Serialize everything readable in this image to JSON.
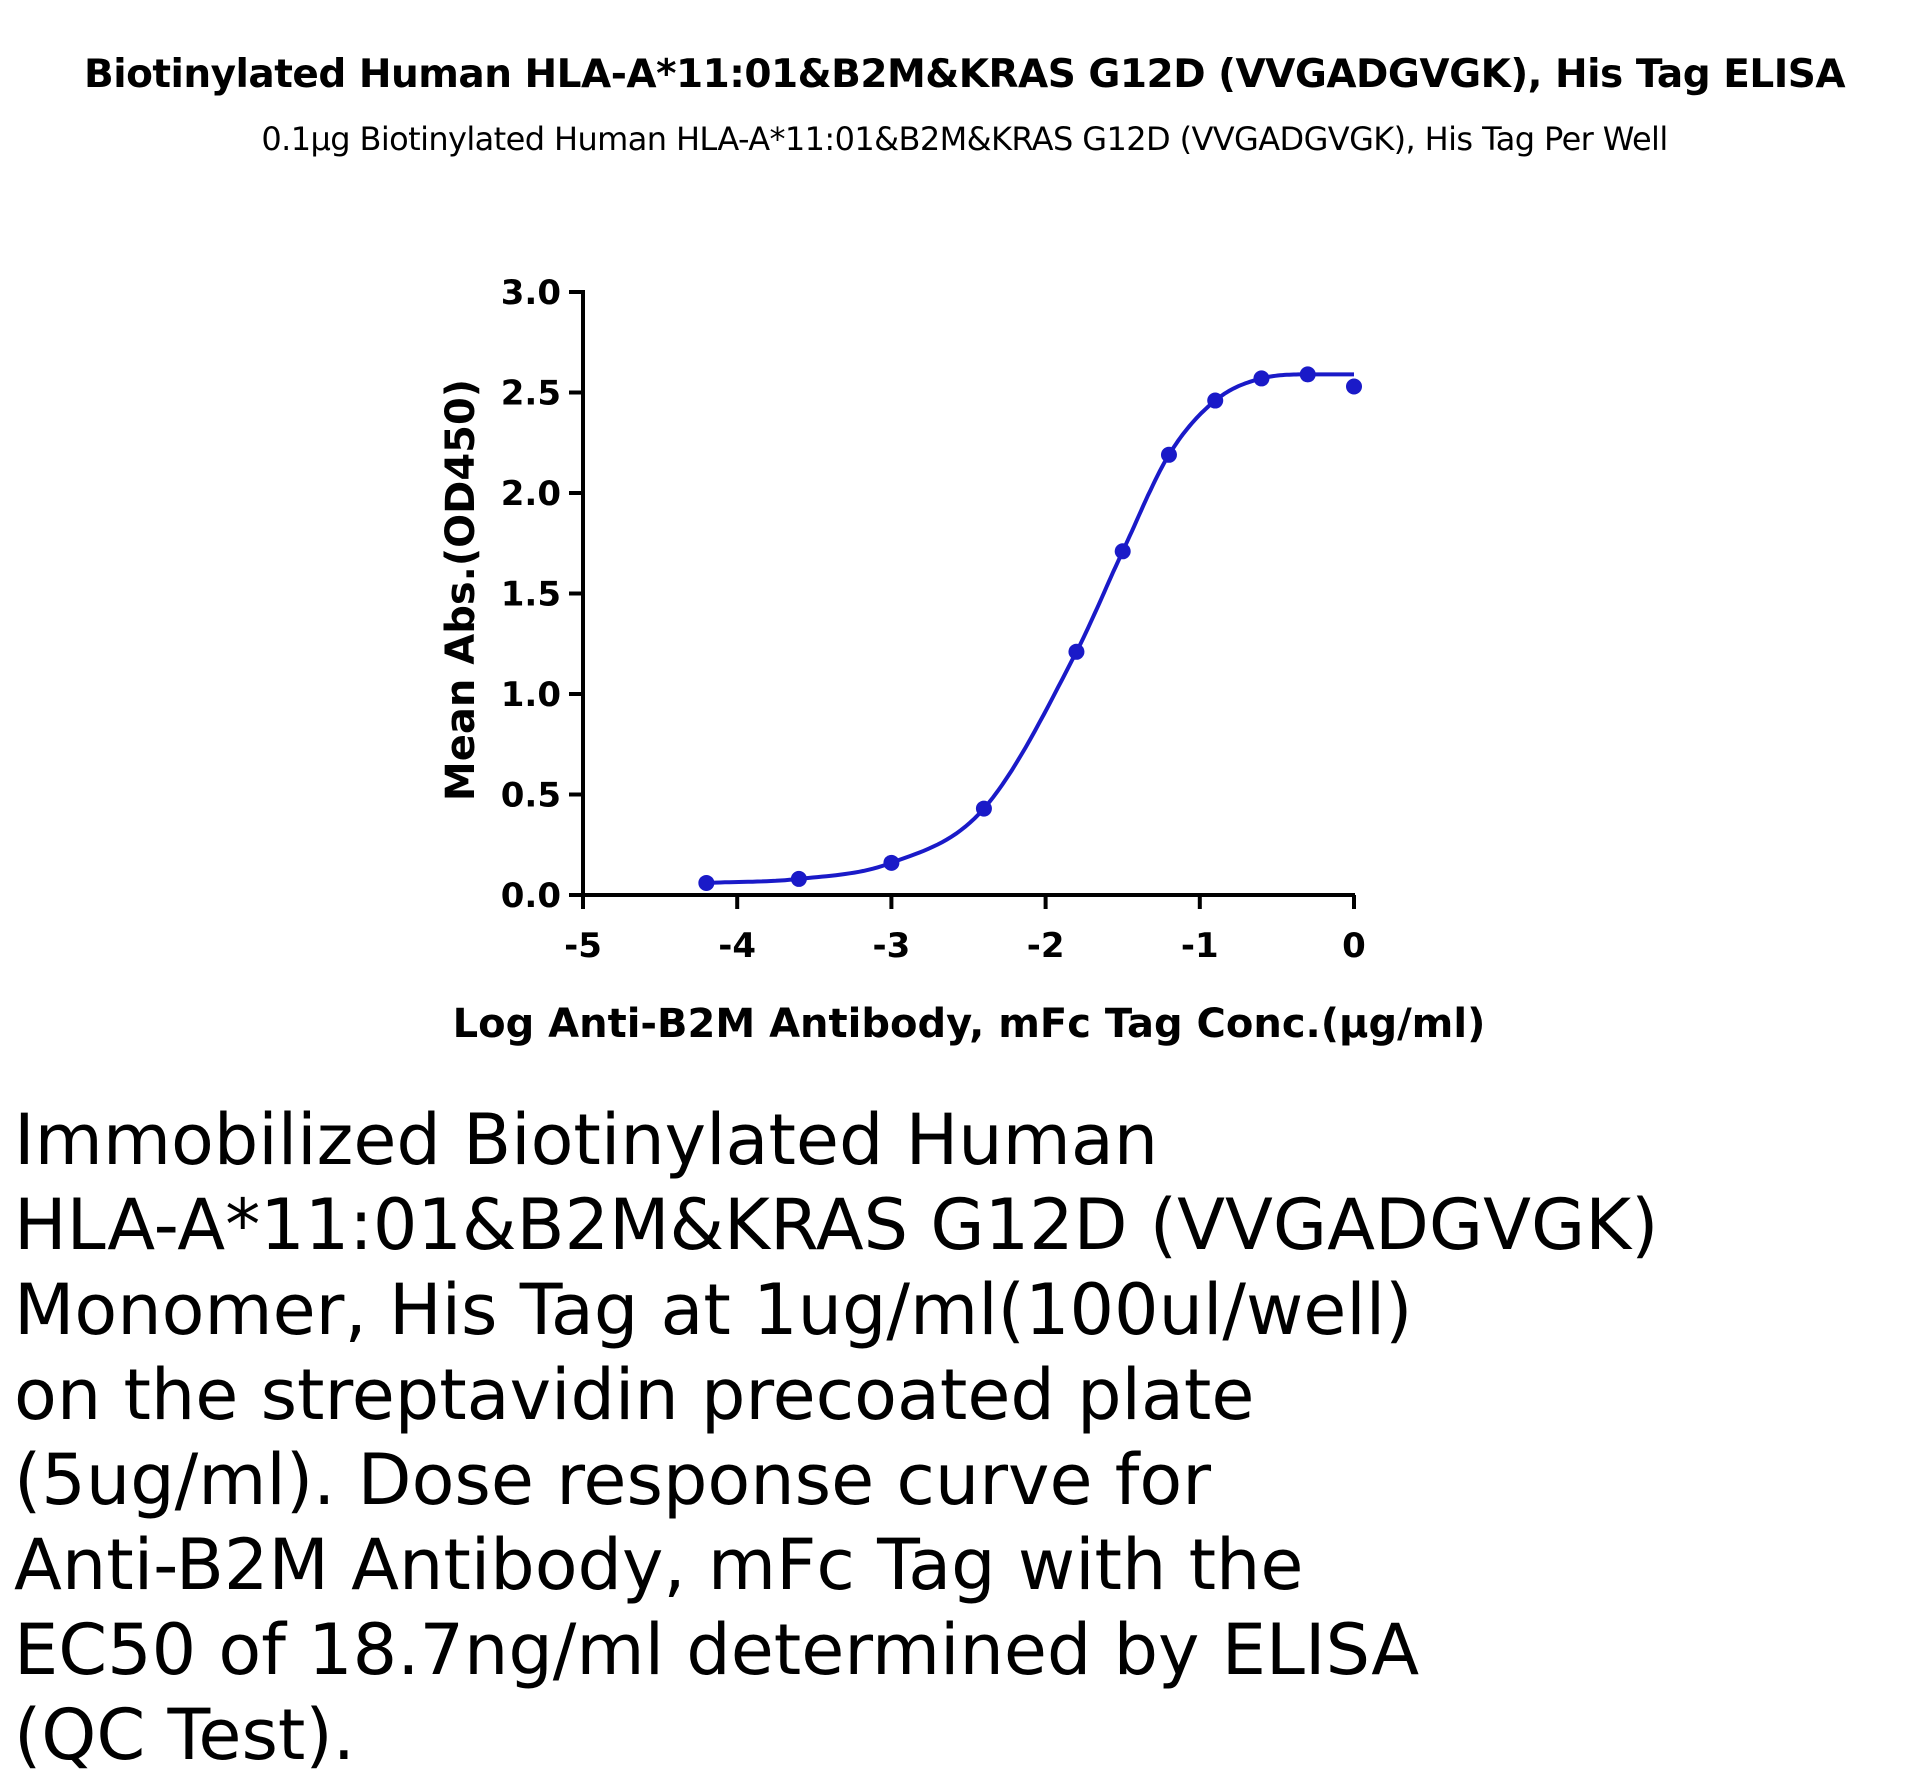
{
  "chart_data": {
    "type": "scatter",
    "title": "Biotinylated Human HLA-A*11:01&B2M&KRAS G12D (VVGADGVGK), His Tag ELISA",
    "subtitle": "0.1µg Biotinylated Human HLA-A*11:01&B2M&KRAS G12D (VVGADGVGK), His Tag Per Well",
    "xlabel": "Log  Anti-B2M Antibody, mFc Tag Conc.(µg/ml)",
    "ylabel": "Mean Abs.(OD450)",
    "xlim": [
      -5,
      0
    ],
    "ylim": [
      0,
      3.0
    ],
    "xticks": [
      "-5",
      "-4",
      "-3",
      "-2",
      "-1",
      "0"
    ],
    "yticks": [
      "0.0",
      "0.5",
      "1.0",
      "1.5",
      "2.0",
      "2.5",
      "3.0"
    ],
    "grid": false,
    "series": [
      {
        "x": [
          -4.2,
          -3.6,
          -3.0,
          -2.4,
          -1.8,
          -1.5,
          -1.2,
          -0.9,
          -0.6,
          -0.3,
          0.0
        ],
        "values": [
          0.06,
          0.08,
          0.16,
          0.43,
          1.21,
          1.71,
          2.19,
          2.46,
          2.57,
          2.59,
          2.53
        ],
        "color": "#1a1ac8",
        "fit": "four-parameter-logistic"
      }
    ]
  },
  "description": {
    "lines": [
      "Immobilized Biotinylated Human",
      "HLA-A*11:01&B2M&KRAS G12D (VVGADGVGK)",
      "Monomer, His Tag at 1ug/ml(100ul/well)",
      "on the streptavidin precoated plate",
      "(5ug/ml). Dose response curve for",
      "Anti-B2M Antibody, mFc Tag with the",
      "EC50 of 18.7ng/ml determined by ELISA",
      "(QC Test)."
    ]
  }
}
